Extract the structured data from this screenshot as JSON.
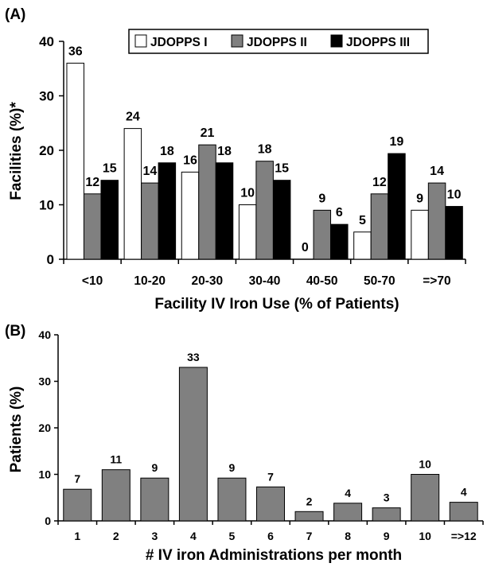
{
  "panels": [
    {
      "panel_label": "(A)",
      "chart_data": {
        "type": "bar",
        "xlabel": "Facility IV Iron Use (% of Patients)",
        "ylabel": "Facilities (%)*",
        "categories": [
          "<10",
          "10-20",
          "20-30",
          "30-40",
          "40-50",
          "50-70",
          "=>70"
        ],
        "series": [
          {
            "name": "JDOPPS I",
            "values": [
              36,
              24,
              16,
              10,
              0,
              5,
              9
            ],
            "color": "#ffffff",
            "labels": [
              "36",
              "24",
              "16",
              "10",
              "0",
              "5",
              "9"
            ]
          },
          {
            "name": "JDOPPS II",
            "values": [
              12,
              14,
              21,
              18,
              9,
              12,
              14
            ],
            "color": "#808080",
            "labels": [
              "12",
              "14",
              "21",
              "18",
              "9",
              "12",
              "14"
            ]
          },
          {
            "name": "JDOPPS III",
            "values": [
              14.5,
              17.7,
              17.7,
              14.5,
              6.4,
              19.4,
              9.7
            ],
            "color": "#000000",
            "labels": [
              "15",
              "18",
              "18",
              "15",
              "6",
              "19",
              "10"
            ]
          }
        ],
        "ylim": [
          0,
          40
        ],
        "yticks": [
          "0",
          "10",
          "20",
          "30",
          "40"
        ],
        "legend_position": "top",
        "grid": false
      }
    },
    {
      "panel_label": "(B)",
      "chart_data": {
        "type": "bar",
        "xlabel": "# IV iron Administrations per month",
        "ylabel": "Patients (%)",
        "categories": [
          "1",
          "2",
          "3",
          "4",
          "5",
          "6",
          "7",
          "8",
          "9",
          "10",
          "=>12"
        ],
        "values": [
          6.8,
          11,
          9.2,
          33,
          9.2,
          7.3,
          2,
          3.8,
          2.8,
          10,
          4
        ],
        "labels": [
          "7",
          "11",
          "9",
          "33",
          "9",
          "7",
          "2",
          "4",
          "3",
          "10",
          "4"
        ],
        "color": "#808080",
        "ylim": [
          0,
          40
        ],
        "yticks": [
          "0",
          "10",
          "20",
          "30",
          "40"
        ],
        "grid": false
      }
    }
  ]
}
